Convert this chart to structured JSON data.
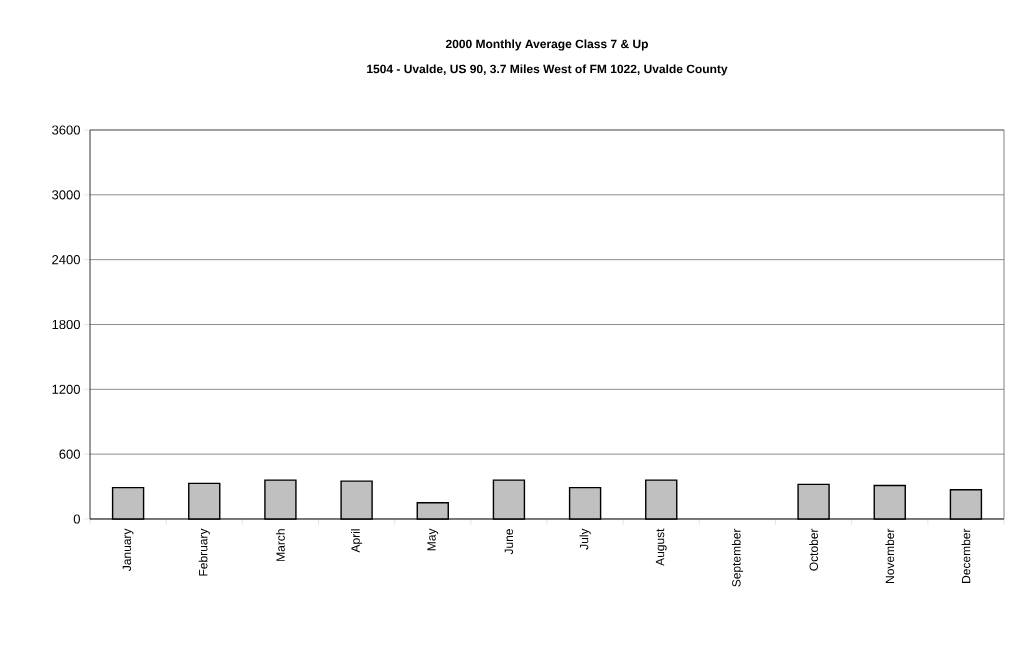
{
  "chart_data": {
    "type": "bar",
    "title": "2000 Monthly Average Class 7 & Up",
    "subtitle": "1504 - Uvalde, US 90, 3.7 Miles West of FM 1022, Uvalde County",
    "categories": [
      "January",
      "February",
      "March",
      "April",
      "May",
      "June",
      "July",
      "August",
      "September",
      "October",
      "November",
      "December"
    ],
    "values": [
      290,
      330,
      360,
      350,
      150,
      360,
      290,
      360,
      null,
      320,
      310,
      270
    ],
    "color": "#c0c0c0",
    "ylim": [
      0,
      3600
    ],
    "yticks": [
      0,
      600,
      1200,
      1800,
      2400,
      3000,
      3600
    ],
    "grid": "y"
  }
}
